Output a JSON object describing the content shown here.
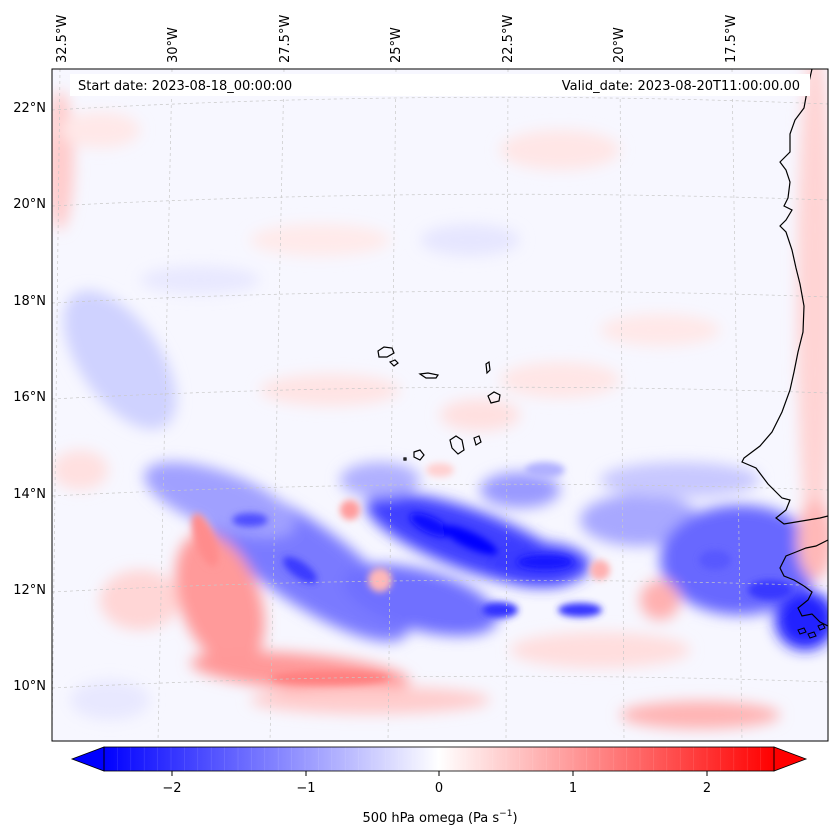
{
  "header": {
    "start_date": "Start date: 2023-08-18_00:00:00",
    "valid_date": "Valid_date: 2023-08-20T11:00:00.00"
  },
  "longitude_labels": [
    "32.5°W",
    "30°W",
    "27.5°W",
    "25°W",
    "22.5°W",
    "20°W",
    "17.5°W"
  ],
  "latitude_labels": [
    "22°N",
    "20°N",
    "18°N",
    "16°N",
    "14°N",
    "12°N",
    "10°N"
  ],
  "colorbar": {
    "ticks": [
      "−2",
      "−1",
      "0",
      "1",
      "2"
    ],
    "label": "500 hPa omega (Pa s",
    "label_sup": "−1",
    "label_end": ")",
    "min": -2.5,
    "max": 2.5,
    "extend": "both",
    "low_color": "#0000ff",
    "mid_color": "#ffffff",
    "high_color": "#ff0000"
  },
  "colors": {
    "coastline": "#000000",
    "gridline": "#c8c8c8",
    "descent": "#ff0000",
    "ascent": "#0000ff"
  }
}
